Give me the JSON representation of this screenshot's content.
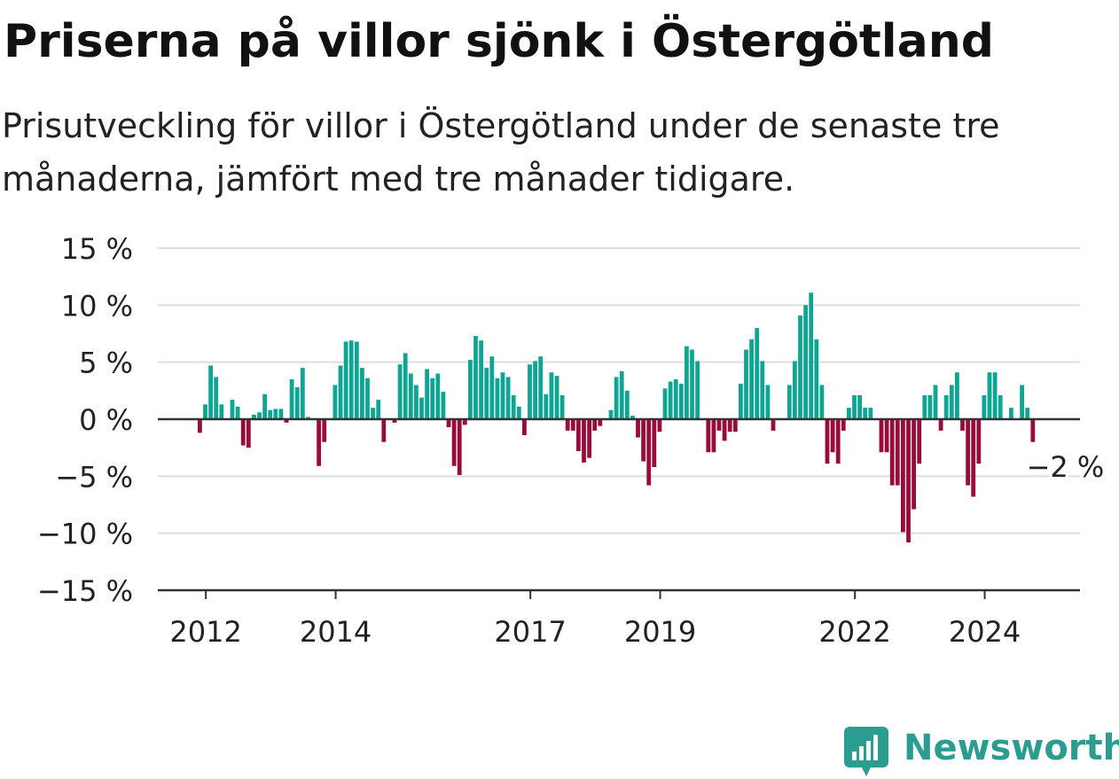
{
  "header": {
    "title": "Priserna på villor sjönk i Östergötland",
    "subtitle": "Prisutveckling för villor i Östergötland under de senaste tre månaderna, jämfört med tre månader tidigare."
  },
  "brand": {
    "name": "Newsworthy",
    "icon": "newsworthy-logo-icon",
    "color": "#2b9d90"
  },
  "colors": {
    "positive": "#0ea593",
    "negative": "#9a0b3c",
    "grid": "#dddddd",
    "axis": "#333333",
    "text": "#222222"
  },
  "chart_data": {
    "type": "bar",
    "title": "Priserna på villor sjönk i Östergötland",
    "subtitle": "Prisutveckling för villor i Östergötland under de senaste tre månaderna, jämfört med tre månader tidigare.",
    "x_start": "2011-12",
    "frequency": "monthly",
    "ylim": [
      -15,
      15
    ],
    "yticks": [
      {
        "value": 15,
        "label": "15 %"
      },
      {
        "value": 10,
        "label": "10 %"
      },
      {
        "value": 5,
        "label": "5 %"
      },
      {
        "value": 0,
        "label": "0 %"
      },
      {
        "value": -5,
        "label": "−5 %"
      },
      {
        "value": -10,
        "label": "−10 %"
      },
      {
        "value": -15,
        "label": "−15 %"
      }
    ],
    "xticks": [
      {
        "date": "2012-01",
        "label": "2012"
      },
      {
        "date": "2014-01",
        "label": "2014"
      },
      {
        "date": "2017-01",
        "label": "2017"
      },
      {
        "date": "2019-01",
        "label": "2019"
      },
      {
        "date": "2022-01",
        "label": "2022"
      },
      {
        "date": "2024-01",
        "label": "2024"
      }
    ],
    "grid": true,
    "values": [
      -1.2,
      1.3,
      4.7,
      3.7,
      1.3,
      0,
      1.7,
      1.1,
      -2.3,
      -2.5,
      0.4,
      0.6,
      2.2,
      0.8,
      0.9,
      0.9,
      -0.3,
      3.5,
      2.8,
      4.5,
      0.2,
      0,
      -4.1,
      -2.0,
      0,
      3.0,
      4.7,
      6.8,
      6.9,
      6.8,
      4.5,
      3.6,
      1.0,
      1.7,
      -2.0,
      0,
      -0.3,
      4.8,
      5.8,
      4.0,
      3.0,
      1.9,
      4.4,
      3.6,
      4.0,
      2.4,
      -0.7,
      -4.1,
      -4.9,
      -0.5,
      5.2,
      7.3,
      6.9,
      4.5,
      5.5,
      3.6,
      4.1,
      3.7,
      2.1,
      1.1,
      -1.4,
      4.8,
      5.1,
      5.5,
      2.2,
      4.1,
      3.8,
      2.1,
      -1.0,
      -1.0,
      -2.8,
      -3.8,
      -3.4,
      -1.0,
      -0.6,
      0,
      0.8,
      3.7,
      4.2,
      2.5,
      0.3,
      -1.6,
      -3.7,
      -5.8,
      -4.2,
      -1.1,
      2.7,
      3.3,
      3.5,
      3.1,
      6.4,
      6.1,
      5.1,
      0,
      -2.9,
      -2.9,
      -1.0,
      -1.9,
      -1.1,
      -1.1,
      3.1,
      6.1,
      7.0,
      8.0,
      5.1,
      3.0,
      -1.0,
      0,
      0,
      3.0,
      5.1,
      9.1,
      10.0,
      11.1,
      7.0,
      3.0,
      -3.9,
      -2.9,
      -3.9,
      -1.0,
      1.0,
      2.1,
      2.1,
      1.0,
      1.0,
      0,
      -2.9,
      -2.9,
      -5.8,
      -5.8,
      -9.9,
      -10.8,
      -7.9,
      -3.9,
      2.1,
      2.1,
      3.0,
      -1.0,
      2.1,
      3.0,
      4.1,
      -1.0,
      -5.8,
      -6.8,
      -3.9,
      2.1,
      4.1,
      4.1,
      2.1,
      0,
      1.0,
      0,
      3.0,
      1.0,
      -2.0
    ],
    "annotation": {
      "text": "−2 %",
      "value": -2,
      "label_value": -4.2
    }
  }
}
